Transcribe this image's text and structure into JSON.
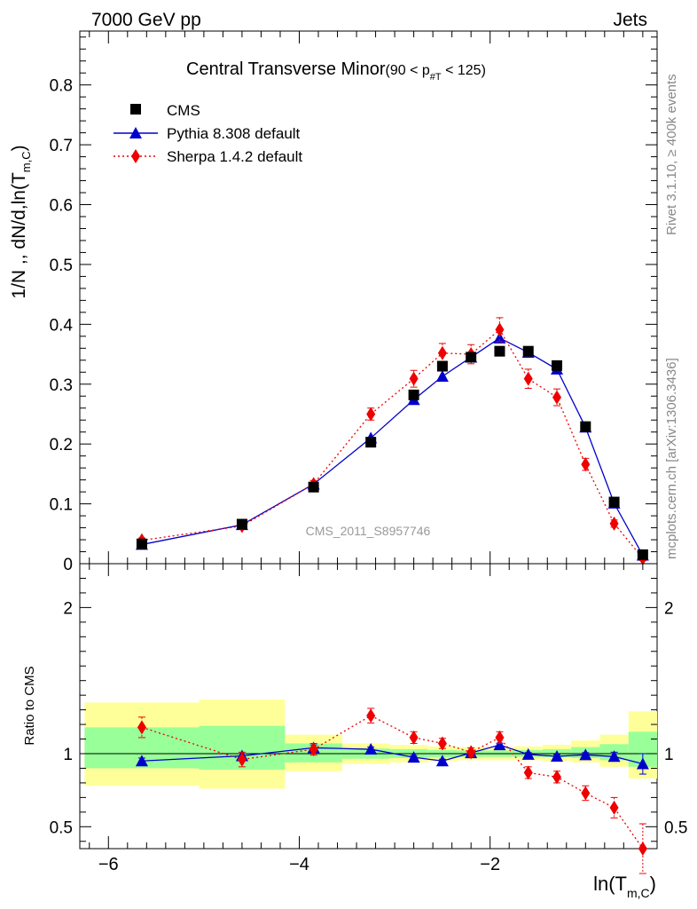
{
  "header": {
    "left": "7000 GeV pp",
    "right": "Jets"
  },
  "side_labels": {
    "upper": "Rivet 3.1.10, ≥ 400k events",
    "lower": "mcplots.cern.ch [arXiv:1306.3436]"
  },
  "watermark": "CMS_2011_S8957746",
  "colors": {
    "data": "#000000",
    "pythia": "#0000cc",
    "sherpa": "#ee0000",
    "band_outer": "#ffff99",
    "band_inner": "#99ff99"
  },
  "chart_data": [
    {
      "type": "scatter",
      "title": {
        "main": "Central Transverse Minor",
        "range_prefix": "(90 < p",
        "range_sub": "#T",
        "range_suffix": "  < 125)"
      },
      "ylabel": "1/N ,, dN/d,ln(T",
      "ylabel_sub": "m,C",
      "ylabel_close": ")",
      "xlim": [
        -6.3,
        -0.25
      ],
      "ylim": [
        0,
        0.89
      ],
      "yticks": [
        0,
        0.1,
        0.2,
        0.3,
        0.4,
        0.5,
        0.6,
        0.7,
        0.8
      ],
      "ytick_labels": [
        "0",
        "0.1",
        "0.2",
        "0.3",
        "0.4",
        "0.5",
        "0.6",
        "0.7",
        "0.8"
      ],
      "legend_position": "top-left",
      "series": [
        {
          "name": "CMS",
          "style": "square",
          "x": [
            -5.65,
            -4.6,
            -3.85,
            -3.25,
            -2.8,
            -2.5,
            -2.2,
            -1.9,
            -1.6,
            -1.3,
            -1.0,
            -0.7,
            -0.4
          ],
          "y": [
            0.033,
            0.066,
            0.128,
            0.203,
            0.282,
            0.33,
            0.345,
            0.355,
            0.355,
            0.331,
            0.229,
            0.103,
            0.015
          ]
        },
        {
          "name": "Pythia 8.308 default",
          "style": "triangle-line",
          "x": [
            -5.65,
            -4.6,
            -3.85,
            -3.25,
            -2.8,
            -2.5,
            -2.2,
            -1.9,
            -1.6,
            -1.3,
            -1.0,
            -0.7,
            -0.4
          ],
          "y": [
            0.032,
            0.065,
            0.133,
            0.21,
            0.274,
            0.313,
            0.345,
            0.377,
            0.353,
            0.325,
            0.228,
            0.101,
            0.014
          ]
        },
        {
          "name": "Sherpa 1.4.2 default",
          "style": "diamond-dotted",
          "x": [
            -5.65,
            -4.6,
            -3.85,
            -3.25,
            -2.8,
            -2.5,
            -2.2,
            -1.9,
            -1.6,
            -1.3,
            -1.0,
            -0.7,
            -0.4
          ],
          "y": [
            0.039,
            0.063,
            0.133,
            0.25,
            0.309,
            0.352,
            0.35,
            0.391,
            0.309,
            0.278,
            0.166,
            0.067,
            0.009
          ],
          "yerr": [
            0.004,
            0.004,
            0.006,
            0.01,
            0.014,
            0.016,
            0.016,
            0.02,
            0.016,
            0.014,
            0.01,
            0.006,
            0.004
          ]
        }
      ]
    },
    {
      "type": "scatter",
      "ylabel": "Ratio to CMS",
      "xlabel": "ln(T",
      "xlabel_sub": "m,C",
      "xlabel_close": ")",
      "xlim": [
        -6.3,
        -0.25
      ],
      "ylim": [
        0.35,
        2.3
      ],
      "xticks": [
        -6,
        -4,
        -2
      ],
      "xtick_labels": [
        "−6",
        "−4",
        "−2"
      ],
      "yticks": [
        0.5,
        1,
        2
      ],
      "ytick_labels": [
        "0.5",
        "1",
        "2"
      ],
      "bands": {
        "edges": [
          -6.25,
          -5.05,
          -4.15,
          -3.55,
          -3.05,
          -2.65,
          -2.35,
          -2.05,
          -1.75,
          -1.45,
          -1.15,
          -0.85,
          -0.55,
          -0.25
        ],
        "outer_lo": [
          0.78,
          0.76,
          0.88,
          0.93,
          0.94,
          0.95,
          0.955,
          0.955,
          0.955,
          0.95,
          0.94,
          0.91,
          0.83
        ],
        "outer_hi": [
          1.35,
          1.37,
          1.13,
          1.07,
          1.06,
          1.05,
          1.045,
          1.045,
          1.05,
          1.06,
          1.09,
          1.13,
          1.29
        ],
        "inner_lo": [
          0.9,
          0.89,
          0.94,
          0.965,
          0.97,
          0.975,
          0.978,
          0.978,
          0.978,
          0.975,
          0.97,
          0.955,
          0.91
        ],
        "inner_hi": [
          1.18,
          1.19,
          1.07,
          1.035,
          1.03,
          1.025,
          1.022,
          1.022,
          1.025,
          1.03,
          1.045,
          1.065,
          1.15
        ]
      },
      "series": [
        {
          "name": "Pythia 8.308 default",
          "style": "triangle-line",
          "x": [
            -5.65,
            -4.6,
            -3.85,
            -3.25,
            -2.8,
            -2.5,
            -2.2,
            -1.9,
            -1.6,
            -1.3,
            -1.0,
            -0.7,
            -0.4
          ],
          "y": [
            0.95,
            0.985,
            1.04,
            1.03,
            0.975,
            0.95,
            1.005,
            1.06,
            0.995,
            0.982,
            0.992,
            0.98,
            0.93
          ],
          "yerr": [
            0.02,
            0.015,
            0.02,
            0.015,
            0.012,
            0.012,
            0.012,
            0.012,
            0.012,
            0.012,
            0.015,
            0.03,
            0.07
          ]
        },
        {
          "name": "Sherpa 1.4.2 default",
          "style": "diamond-dotted",
          "x": [
            -5.65,
            -4.6,
            -3.85,
            -3.25,
            -2.8,
            -2.5,
            -2.2,
            -1.9,
            -1.6,
            -1.3,
            -1.0,
            -0.7,
            -0.4
          ],
          "y": [
            1.18,
            0.96,
            1.03,
            1.26,
            1.11,
            1.07,
            1.01,
            1.11,
            0.87,
            0.84,
            0.73,
            0.63,
            0.35
          ],
          "yerr": [
            0.07,
            0.05,
            0.04,
            0.05,
            0.04,
            0.035,
            0.03,
            0.04,
            0.04,
            0.04,
            0.05,
            0.07,
            0.17
          ]
        }
      ]
    }
  ]
}
